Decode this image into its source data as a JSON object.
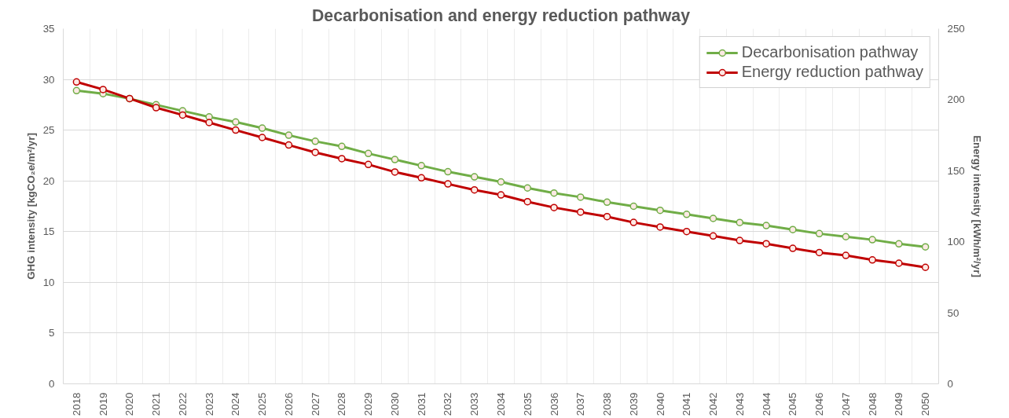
{
  "chart_data": {
    "type": "line",
    "title": "Decarbonisation and energy reduction pathway",
    "xlabel": null,
    "ylabel": "GHG intensity [kgCO₂e/m²/yr]",
    "y2label": "Energy intensity [kWh/m²/yr]",
    "categories": [
      "2018",
      "2019",
      "2020",
      "2021",
      "2022",
      "2023",
      "2024",
      "2025",
      "2026",
      "2027",
      "2028",
      "2029",
      "2030",
      "2031",
      "2032",
      "2033",
      "2034",
      "2035",
      "2036",
      "2037",
      "2038",
      "2039",
      "2040",
      "2041",
      "2042",
      "2043",
      "2044",
      "2045",
      "2046",
      "2047",
      "2048",
      "2049",
      "2050"
    ],
    "series": [
      {
        "name": "Decarbonisation pathway",
        "color": "#70ad47",
        "values": [
          28.9,
          28.6,
          28.1,
          27.5,
          26.9,
          26.3,
          25.8,
          25.2,
          24.5,
          23.9,
          23.4,
          22.7,
          22.1,
          21.5,
          20.9,
          20.4,
          19.9,
          19.3,
          18.8,
          18.4,
          17.9,
          17.5,
          17.1,
          16.7,
          16.3,
          15.9,
          15.6,
          15.2,
          14.8,
          14.5,
          14.2,
          13.8,
          13.5
        ]
      },
      {
        "name": "Energy reduction pathway",
        "color": "#c00000",
        "axis": "y2",
        "values": [
          212.5,
          207.2,
          200.8,
          194.4,
          189.2,
          183.9,
          178.6,
          173.4,
          168.1,
          162.9,
          158.5,
          154.4,
          149.1,
          145.0,
          140.7,
          136.5,
          133.0,
          128.2,
          124.1,
          120.9,
          117.7,
          113.6,
          110.4,
          107.2,
          104.1,
          100.9,
          98.6,
          95.4,
          92.4,
          90.4,
          87.2,
          84.9,
          82.0
        ]
      }
    ],
    "ylim": [
      0,
      35
    ],
    "yticks": [
      0,
      5,
      10,
      15,
      20,
      25,
      30,
      35
    ],
    "y2lim": [
      0,
      250
    ],
    "y2ticks": [
      0,
      50,
      100,
      150,
      200,
      250
    ],
    "grid": true,
    "legend": "top right",
    "marker": "circle",
    "line_style": "solid"
  }
}
